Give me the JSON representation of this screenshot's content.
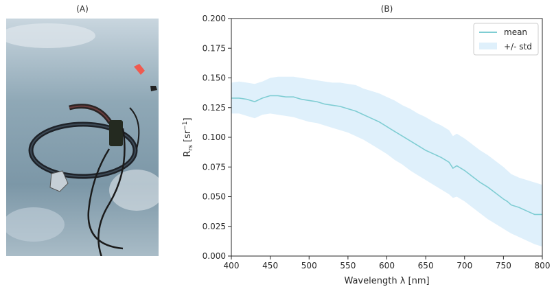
{
  "panels": {
    "a_title": "(A)",
    "b_title": "(B)"
  },
  "photo": {
    "description_icon": "field-photo-ice-radiometer"
  },
  "colors": {
    "mean_line": "#7fcdd3",
    "std_band": "#dff0fb",
    "axis": "#262626"
  },
  "chart_data": {
    "type": "area",
    "title": "(B)",
    "xlabel": "Wavelength λ [nm]",
    "ylabel_main": "R",
    "ylabel_sub": "rs",
    "ylabel_unit_open": " [sr",
    "ylabel_unit_sup": "−1",
    "ylabel_unit_close": "]",
    "xlim": [
      400,
      800
    ],
    "ylim": [
      0.0,
      0.2
    ],
    "xticks": [
      "400",
      "450",
      "500",
      "550",
      "600",
      "650",
      "700",
      "750",
      "800"
    ],
    "xtick_values": [
      400,
      450,
      500,
      550,
      600,
      650,
      700,
      750,
      800
    ],
    "yticks": [
      "0.000",
      "0.025",
      "0.050",
      "0.075",
      "0.100",
      "0.125",
      "0.150",
      "0.175",
      "0.200"
    ],
    "ytick_values": [
      0,
      0.025,
      0.05,
      0.075,
      0.1,
      0.125,
      0.15,
      0.175,
      0.2
    ],
    "grid": false,
    "legend_position": "top-right",
    "x": [
      400,
      410,
      420,
      430,
      440,
      450,
      460,
      470,
      480,
      490,
      500,
      510,
      520,
      530,
      540,
      550,
      560,
      570,
      580,
      590,
      600,
      610,
      620,
      630,
      640,
      650,
      660,
      670,
      680,
      685,
      690,
      700,
      710,
      720,
      730,
      740,
      750,
      755,
      760,
      770,
      780,
      790,
      800
    ],
    "series": [
      {
        "name": "mean",
        "values": [
          0.133,
          0.133,
          0.132,
          0.13,
          0.133,
          0.135,
          0.135,
          0.134,
          0.134,
          0.132,
          0.131,
          0.13,
          0.128,
          0.127,
          0.126,
          0.124,
          0.122,
          0.119,
          0.116,
          0.113,
          0.109,
          0.105,
          0.101,
          0.097,
          0.093,
          0.089,
          0.086,
          0.083,
          0.079,
          0.074,
          0.076,
          0.072,
          0.067,
          0.062,
          0.058,
          0.053,
          0.048,
          0.046,
          0.043,
          0.041,
          0.038,
          0.035,
          0.035
        ]
      },
      {
        "name": "+/- std",
        "lower": [
          0.12,
          0.12,
          0.118,
          0.116,
          0.119,
          0.12,
          0.119,
          0.118,
          0.117,
          0.115,
          0.113,
          0.112,
          0.11,
          0.108,
          0.106,
          0.104,
          0.101,
          0.098,
          0.094,
          0.09,
          0.086,
          0.081,
          0.077,
          0.072,
          0.068,
          0.064,
          0.06,
          0.056,
          0.052,
          0.049,
          0.05,
          0.046,
          0.041,
          0.036,
          0.031,
          0.027,
          0.023,
          0.021,
          0.019,
          0.016,
          0.013,
          0.01,
          0.008
        ],
        "upper": [
          0.146,
          0.147,
          0.146,
          0.145,
          0.147,
          0.15,
          0.151,
          0.151,
          0.151,
          0.15,
          0.149,
          0.148,
          0.147,
          0.146,
          0.146,
          0.145,
          0.144,
          0.141,
          0.139,
          0.137,
          0.134,
          0.131,
          0.127,
          0.124,
          0.12,
          0.117,
          0.113,
          0.11,
          0.106,
          0.101,
          0.103,
          0.099,
          0.094,
          0.089,
          0.085,
          0.08,
          0.075,
          0.072,
          0.069,
          0.066,
          0.064,
          0.062,
          0.06
        ]
      }
    ],
    "legend": [
      "mean",
      "+/- std"
    ]
  }
}
